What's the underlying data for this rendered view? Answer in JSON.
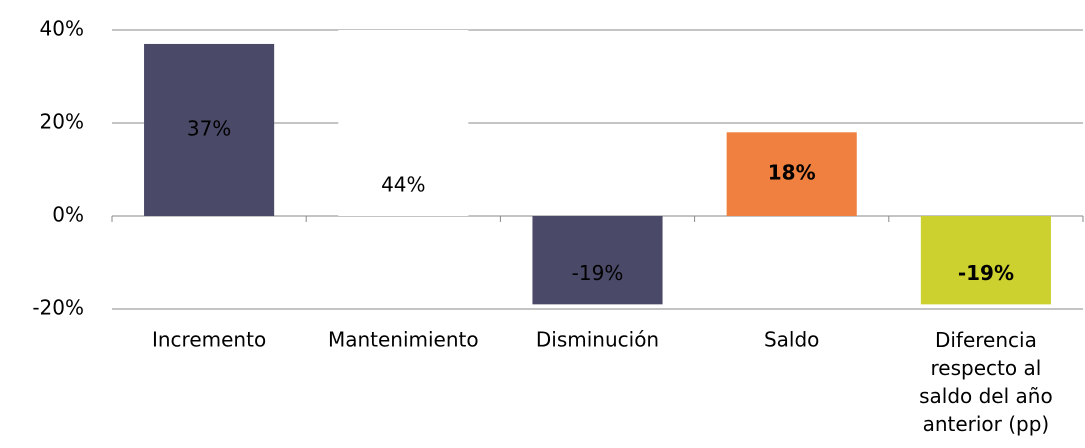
{
  "chart_data": {
    "type": "bar",
    "categories": [
      "Incremento",
      "Mantenimiento",
      "Disminución",
      "Saldo",
      "Diferencia\nrespecto al\nsaldo del año\nanterior (pp)"
    ],
    "values": [
      37,
      44,
      -19,
      18,
      -19
    ],
    "value_labels": [
      "37%",
      "44%",
      "-19%",
      "18%",
      "-19%"
    ],
    "colors": [
      "#4a4a68",
      "#ffffff",
      "#4a4a68",
      "#f08040",
      "#cdd12f"
    ],
    "label_colors": [
      "#ffffff",
      "#000000",
      "#ffffff",
      "#000000",
      "#000000"
    ],
    "label_bold": [
      false,
      false,
      false,
      true,
      true
    ],
    "ylim": [
      -20,
      40
    ],
    "yticks": [
      {
        "value": -20,
        "label": "-20%"
      },
      {
        "value": 0,
        "label": "0%"
      },
      {
        "value": 20,
        "label": "20%"
      },
      {
        "value": 40,
        "label": "40%"
      }
    ],
    "grid": true
  }
}
